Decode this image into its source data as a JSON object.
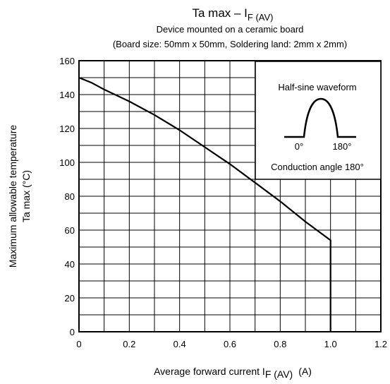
{
  "chart_data": {
    "type": "line",
    "title_main": "Ta max – I",
    "title_sub": "F (AV)",
    "subtitle_1": "Device mounted on a ceramic board",
    "subtitle_2": "(Board size: 50mm x 50mm, Soldering land: 2mm x 2mm)",
    "xlabel_main": "Average forward current   I",
    "xlabel_sub": "F (AV)",
    "xlabel_unit": "(A)",
    "ylabel_line1": "Maximum allowable temperature",
    "ylabel_line2": "Ta max    (°C)",
    "xlim": [
      0,
      1.2
    ],
    "ylim": [
      0,
      160
    ],
    "x_ticks": [
      "0",
      "0.2",
      "0.4",
      "0.6",
      "0.8",
      "1.0",
      "1.2"
    ],
    "x_tick_values": [
      0,
      0.2,
      0.4,
      0.6,
      0.8,
      1.0,
      1.2
    ],
    "y_ticks": [
      "0",
      "20",
      "40",
      "60",
      "80",
      "100",
      "120",
      "140",
      "160"
    ],
    "y_tick_values": [
      0,
      20,
      40,
      60,
      80,
      100,
      120,
      140,
      160
    ],
    "grid": true,
    "series": [
      {
        "x": [
          0,
          0.05,
          0.1,
          0.2,
          0.3,
          0.4,
          0.5,
          0.6,
          0.7,
          0.8,
          0.9,
          1.0,
          1.0
        ],
        "y": [
          150,
          147,
          143,
          136,
          128,
          119,
          109,
          99,
          88,
          77,
          65,
          54,
          0
        ]
      }
    ],
    "inset": {
      "title": "Half-sine waveform",
      "label_start": "0°",
      "label_end": "180°",
      "caption": "Conduction angle 180°"
    }
  }
}
